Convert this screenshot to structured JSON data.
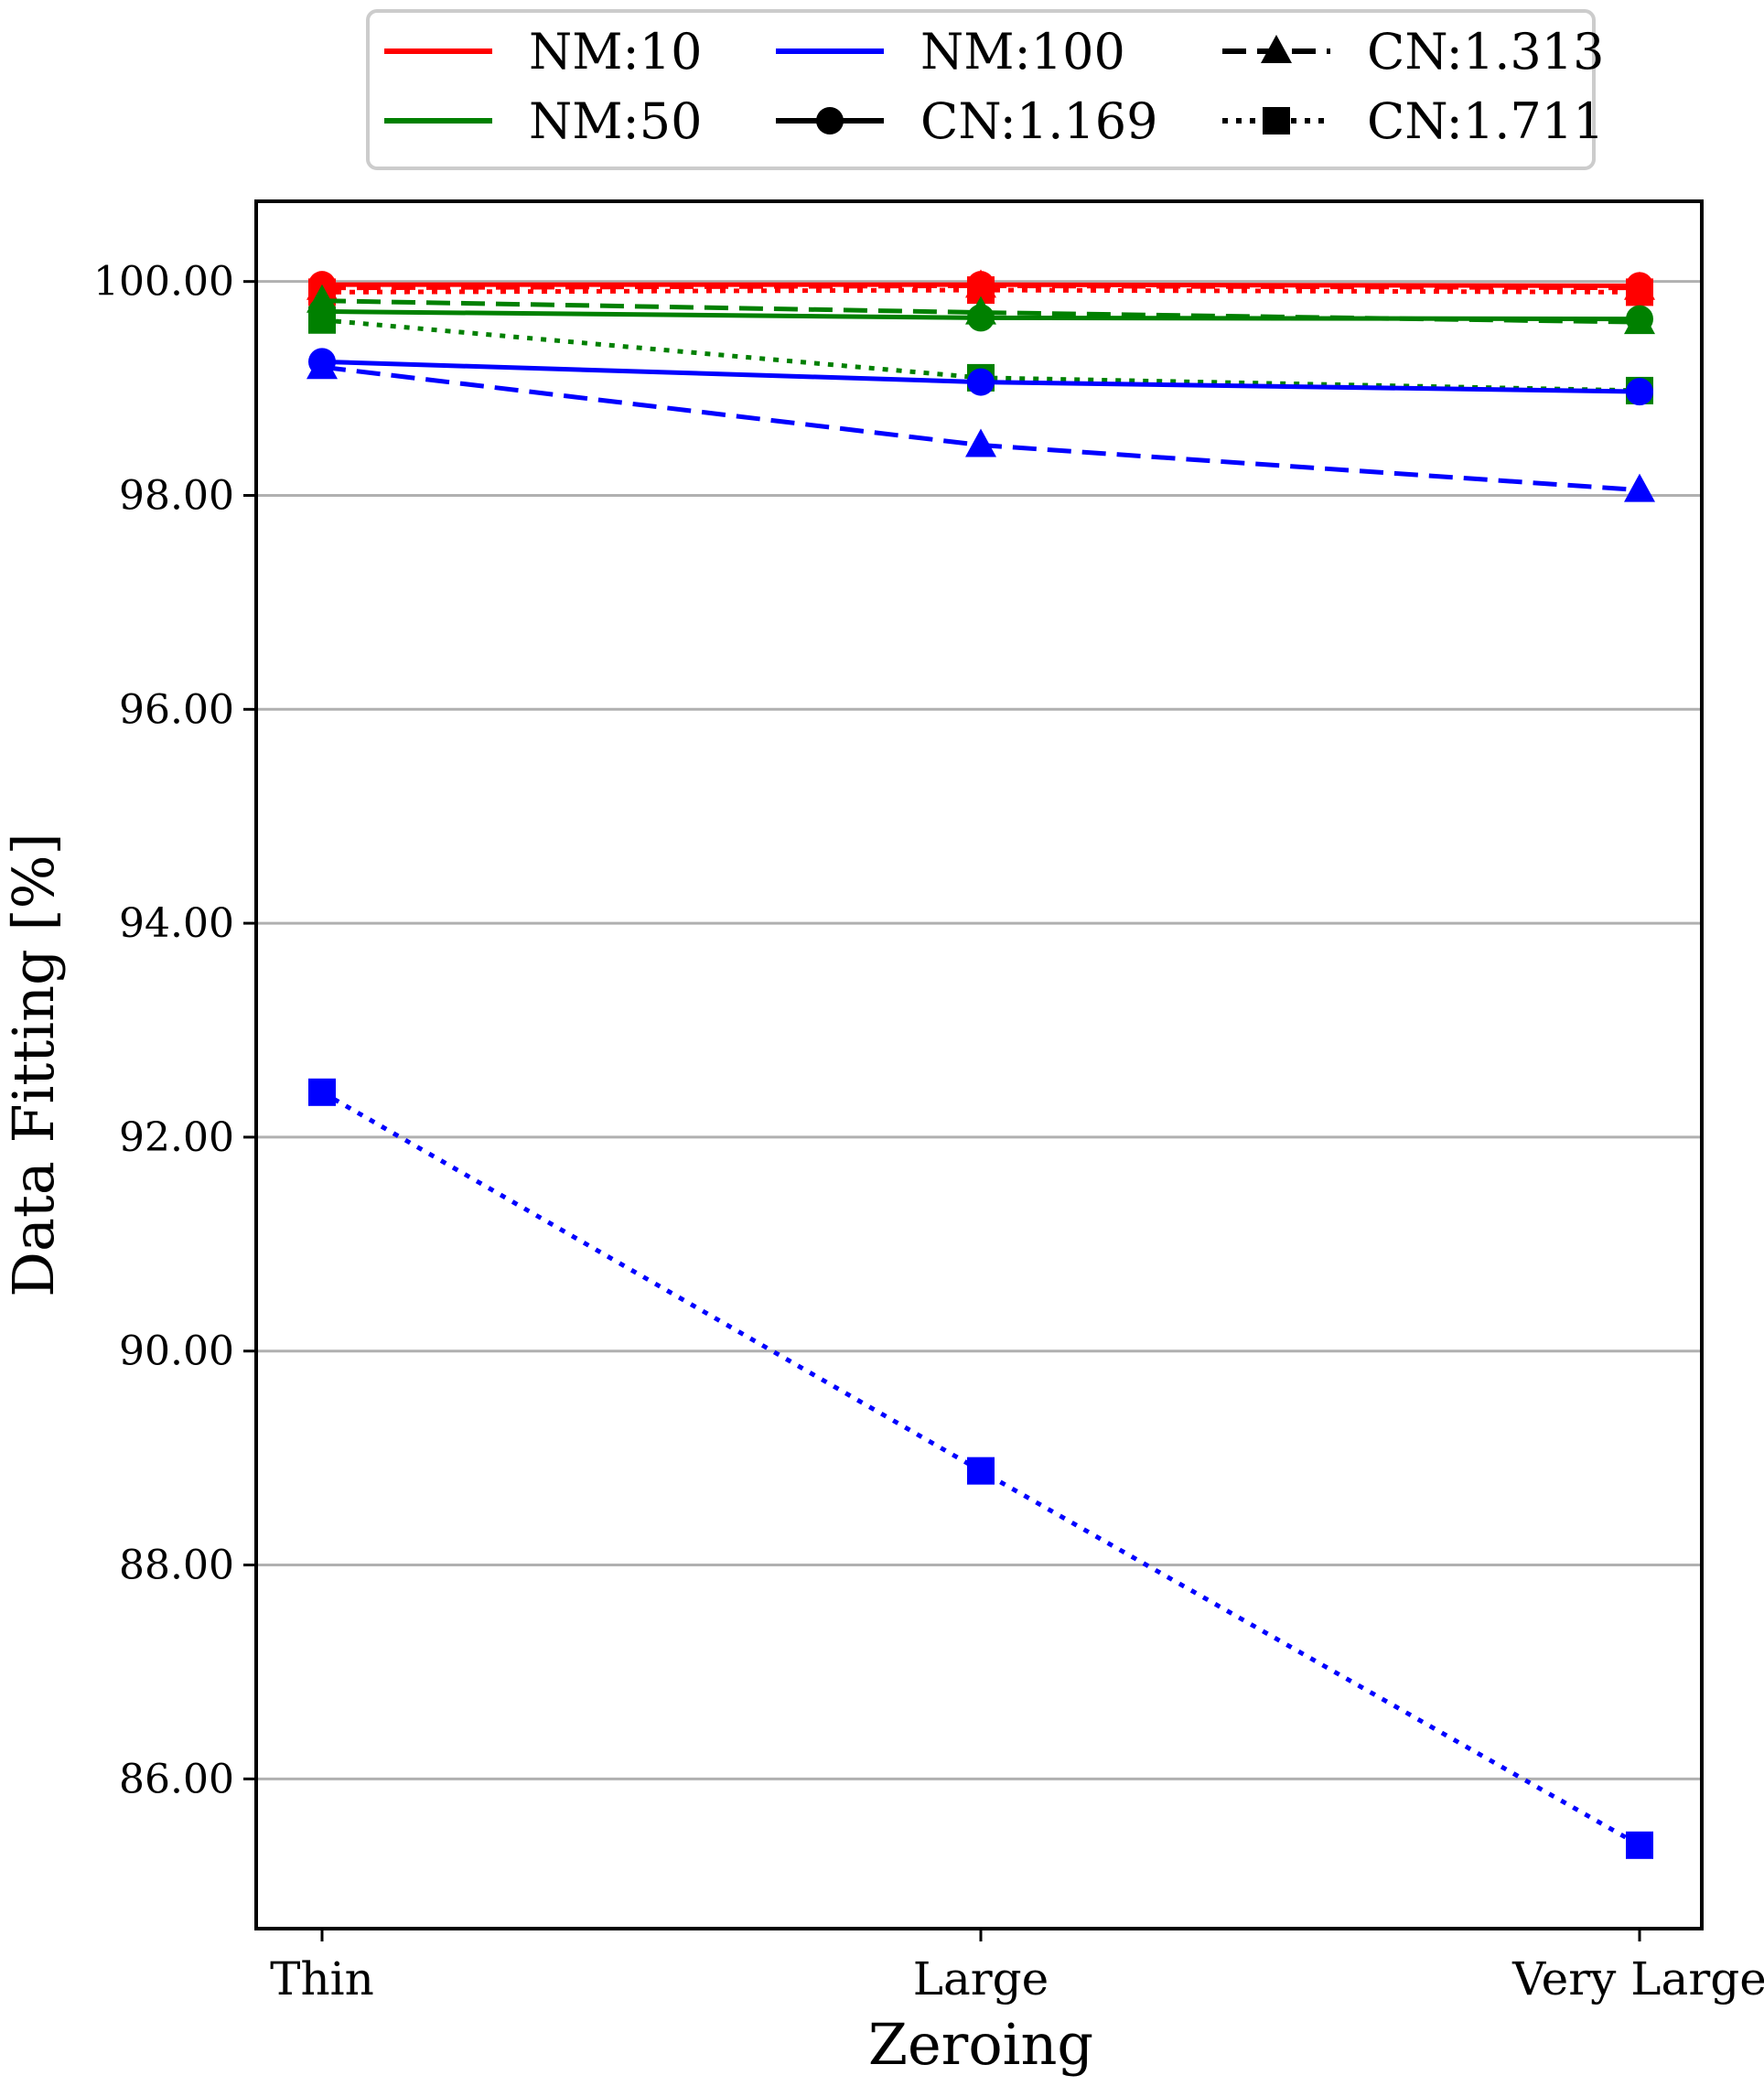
{
  "chart_data": {
    "type": "line",
    "title": "",
    "xlabel": "Zeroing",
    "ylabel": "Data Fitting [%]",
    "categories": [
      "Thin",
      "Large",
      "Very Large"
    ],
    "ylim": [
      84.6,
      100.75
    ],
    "yticks": [
      86.0,
      88.0,
      90.0,
      92.0,
      94.0,
      96.0,
      98.0,
      100.0
    ],
    "ytick_labels": [
      "86.00",
      "88.00",
      "90.00",
      "92.00",
      "94.00",
      "96.00",
      "98.00",
      "100.00"
    ],
    "grid": "horizontal",
    "legend_position": "top-center",
    "legend": [
      {
        "label": "NM:10",
        "kind": "color",
        "color": "#ff0000"
      },
      {
        "label": "NM:50",
        "kind": "color",
        "color": "#008000"
      },
      {
        "label": "NM:100",
        "kind": "color",
        "color": "#0000ff"
      },
      {
        "label": "CN:1.169",
        "kind": "style",
        "dash": "solid",
        "marker": "circle"
      },
      {
        "label": "CN:1.313",
        "kind": "style",
        "dash": "dashed",
        "marker": "triangle"
      },
      {
        "label": "CN:1.711",
        "kind": "style",
        "dash": "dotted",
        "marker": "square"
      }
    ],
    "series": [
      {
        "nm": "NM:10",
        "cn": "CN:1.711",
        "color": "#ff0000",
        "dash": "dotted",
        "marker": "square",
        "values": [
          99.9,
          99.92,
          99.9
        ]
      },
      {
        "nm": "NM:10",
        "cn": "CN:1.313",
        "color": "#ff0000",
        "dash": "dashed",
        "marker": "triangle",
        "values": [
          99.94,
          99.96,
          99.94
        ]
      },
      {
        "nm": "NM:10",
        "cn": "CN:1.169",
        "color": "#ff0000",
        "dash": "solid",
        "marker": "circle",
        "values": [
          99.97,
          99.97,
          99.96
        ]
      },
      {
        "nm": "NM:50",
        "cn": "CN:1.711",
        "color": "#008000",
        "dash": "dotted",
        "marker": "square",
        "values": [
          99.64,
          99.1,
          98.98
        ]
      },
      {
        "nm": "NM:50",
        "cn": "CN:1.313",
        "color": "#008000",
        "dash": "dashed",
        "marker": "triangle",
        "values": [
          99.82,
          99.71,
          99.62
        ]
      },
      {
        "nm": "NM:50",
        "cn": "CN:1.169",
        "color": "#008000",
        "dash": "solid",
        "marker": "circle",
        "values": [
          99.72,
          99.66,
          99.65
        ]
      },
      {
        "nm": "NM:100",
        "cn": "CN:1.711",
        "color": "#0000ff",
        "dash": "dotted",
        "marker": "square",
        "values": [
          92.42,
          88.88,
          85.38
        ]
      },
      {
        "nm": "NM:100",
        "cn": "CN:1.313",
        "color": "#0000ff",
        "dash": "dashed",
        "marker": "triangle",
        "values": [
          99.2,
          98.47,
          98.05
        ]
      },
      {
        "nm": "NM:100",
        "cn": "CN:1.169",
        "color": "#0000ff",
        "dash": "solid",
        "marker": "circle",
        "values": [
          99.25,
          99.06,
          98.97
        ]
      }
    ]
  }
}
